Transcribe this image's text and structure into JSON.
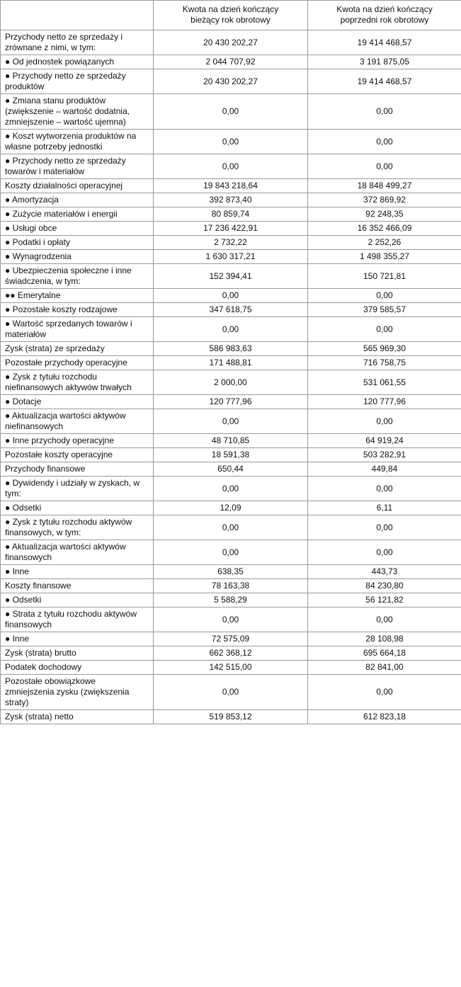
{
  "table": {
    "header": [
      "Kwota na dzień kończący bieżący rok obrotowy",
      "Kwota na dzień kończący poprzedni rok obrotowy"
    ],
    "rows": [
      [
        "Przychody netto ze sprzedaży i zrównane z nimi, w tym:",
        "20 430 202,27",
        "19 414 468,57"
      ],
      [
        "● Od jednostek powiązanych",
        "2 044 707,92",
        "3 191 875,05"
      ],
      [
        "● Przychody netto ze sprzedaży produktów",
        "20 430 202,27",
        "19 414 468,57"
      ],
      [
        "● Zmiana stanu produktów (zwiększenie – wartość dodatnia, zmniejszenie – wartość ujemna)",
        "0,00",
        "0,00"
      ],
      [
        "● Koszt wytworzenia produktów na własne potrzeby jednostki",
        "0,00",
        "0,00"
      ],
      [
        "● Przychody netto ze sprzedaży towarów i materiałów",
        "0,00",
        "0,00"
      ],
      [
        "Koszty działalności operacyjnej",
        "19 843 218,64",
        "18 848 499,27"
      ],
      [
        "● Amortyzacja",
        "392 873,40",
        "372 869,92"
      ],
      [
        "● Zużycie materiałów i energii",
        "80 859,74",
        "92 248,35"
      ],
      [
        "● Usługi obce",
        "17 236 422,91",
        "16 352 466,09"
      ],
      [
        "● Podatki i opłaty",
        "2 732,22",
        "2 252,26"
      ],
      [
        "● Wynagrodzenia",
        "1 630 317,21",
        "1 498 355,27"
      ],
      [
        "● Ubezpieczenia społeczne i inne świadczenia, w tym:",
        "152 394,41",
        "150 721,81"
      ],
      [
        "●● Emerytalne",
        "0,00",
        "0,00"
      ],
      [
        "● Pozostałe koszty rodzajowe",
        "347 618,75",
        "379 585,57"
      ],
      [
        "● Wartość sprzedanych towarów i materiałów",
        "0,00",
        "0,00"
      ],
      [
        "Zysk (strata) ze sprzedaży",
        "586 983,63",
        "565 969,30"
      ],
      [
        "Pozostałe przychody operacyjne",
        "171 488,81",
        "716 758,75"
      ],
      [
        "● Zysk z tytułu rozchodu niefinansowych aktywów trwałych",
        "2 000,00",
        "531 061,55"
      ],
      [
        "● Dotacje",
        "120 777,96",
        "120 777,96"
      ],
      [
        "● Aktualizacja wartości aktywów niefinansowych",
        "0,00",
        "0,00"
      ],
      [
        "● Inne przychody operacyjne",
        "48 710,85",
        "64 919,24"
      ],
      [
        "Pozostałe koszty operacyjne",
        "18 591,38",
        "503 282,91"
      ],
      [
        "Przychody finansowe",
        "650,44",
        "449,84"
      ],
      [
        "● Dywidendy i udziały w zyskach, w tym:",
        "0,00",
        "0,00"
      ],
      [
        "● Odsetki",
        "12,09",
        "6,11"
      ],
      [
        "● Zysk z tytułu rozchodu aktywów finansowych, w tym:",
        "0,00",
        "0,00"
      ],
      [
        "● Aktualizacja wartości aktywów finansowych",
        "0,00",
        "0,00"
      ],
      [
        "● Inne",
        "638,35",
        "443,73"
      ],
      [
        "Koszty finansowe",
        "78 163,38",
        "84 230,80"
      ],
      [
        "● Odsetki",
        "5 588,29",
        "56 121,82"
      ],
      [
        "● Strata z tytułu rozchodu aktywów finansowych",
        "0,00",
        "0,00"
      ],
      [
        "● Inne",
        "72 575,09",
        "28 108,98"
      ],
      [
        "Zysk (strata) brutto",
        "662 368,12",
        "695 664,18"
      ],
      [
        "Podatek dochodowy",
        "142 515,00",
        "82 841,00"
      ],
      [
        "Pozostałe obowiązkowe zmniejszenia zysku (zwiększenia straty)",
        "0,00",
        "0,00"
      ],
      [
        "Zysk (strata) netto",
        "519 853,12",
        "612 823,18"
      ]
    ]
  }
}
